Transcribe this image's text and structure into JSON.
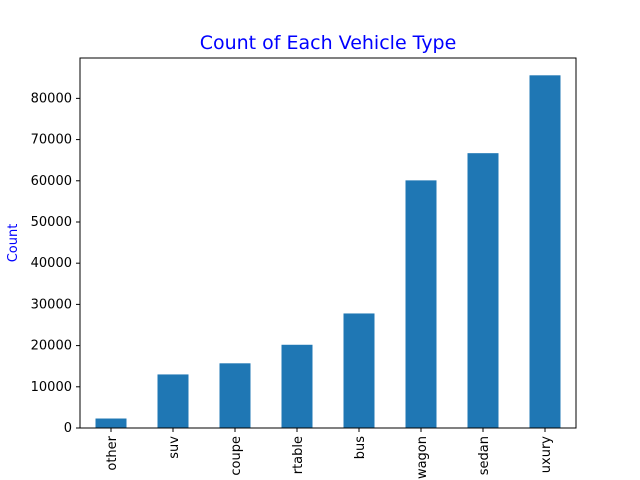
{
  "chart_data": {
    "type": "bar",
    "title": "Count of Each Vehicle Type",
    "xlabel": "",
    "ylabel": "Count",
    "categories": [
      "other",
      "suv",
      "coupe",
      "convertible",
      "bus",
      "wagon",
      "sedan",
      "luxury"
    ],
    "tick_labels_visible": [
      "other",
      "suv",
      "coupe",
      "rtable",
      "bus",
      "wagon",
      "sedan",
      "uxury"
    ],
    "values": [
      2300,
      13000,
      15700,
      20200,
      27800,
      60100,
      66700,
      85600
    ],
    "ylim": [
      0,
      89800
    ],
    "yticks": [
      0,
      10000,
      20000,
      30000,
      40000,
      50000,
      60000,
      70000,
      80000
    ],
    "grid": false,
    "legend": "none"
  },
  "colors": {
    "bar": "#1f77b4",
    "title": "#0000ff",
    "ylabel": "#0000ff",
    "axis": "#000000"
  }
}
